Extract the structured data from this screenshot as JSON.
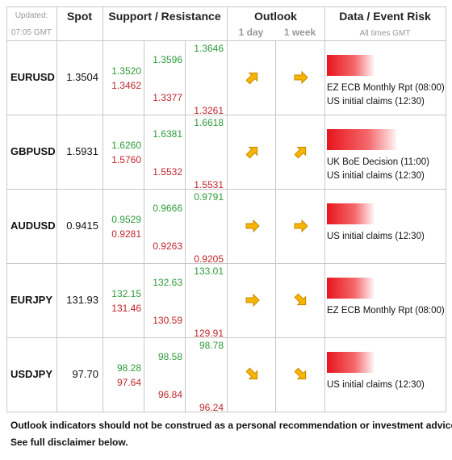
{
  "header": {
    "updated": "Updated:",
    "time": "07:05 GMT",
    "spot": "Spot",
    "support_resistance": "Support / Resistance",
    "outlook": "Outlook",
    "day": "1 day",
    "week": "1 week",
    "data_event": "Data / Event Risk",
    "times": "All times GMT"
  },
  "rows": [
    {
      "pair": "EURUSD",
      "spot": "1.3504",
      "levels": [
        {
          "resistance": "1.3520",
          "support": "1.3462"
        },
        {
          "resistance": "1.3596",
          "support": "1.3377"
        },
        {
          "resistance": "1.3646",
          "support": "1.3261"
        }
      ],
      "events": [
        "EZ ECB Monthly Rpt (08:00)",
        "US initial claims (12:30)"
      ]
    },
    {
      "pair": "GBPUSD",
      "spot": "1.5931",
      "levels": [
        {
          "resistance": "1.6260",
          "support": "1.5760"
        },
        {
          "resistance": "1.6381",
          "support": "1.5532"
        },
        {
          "resistance": "1.6618",
          "support": "1.5531"
        }
      ],
      "events": [
        "UK BoE Decision (11:00)",
        "US initial claims (12:30)"
      ]
    },
    {
      "pair": "AUDUSD",
      "spot": "0.9415",
      "levels": [
        {
          "resistance": "0.9529",
          "support": "0.9281"
        },
        {
          "resistance": "0.9666",
          "support": "0.9263"
        },
        {
          "resistance": "0.9791",
          "support": "0.9205"
        }
      ],
      "events": [
        "US initial claims (12:30)"
      ]
    },
    {
      "pair": "EURJPY",
      "spot": "131.93",
      "levels": [
        {
          "resistance": "132.15",
          "support": "131.46"
        },
        {
          "resistance": "132.63",
          "support": "130.59"
        },
        {
          "resistance": "133.01",
          "support": "129.91"
        }
      ],
      "events": [
        "EZ ECB Monthly Rpt (08:00)"
      ]
    },
    {
      "pair": "USDJPY",
      "spot": "97.70",
      "levels": [
        {
          "resistance": "98.28",
          "support": "97.64"
        },
        {
          "resistance": "98.58",
          "support": "96.84"
        },
        {
          "resistance": "98.78",
          "support": "96.24"
        }
      ],
      "events": [
        "US initial claims (12:30)"
      ]
    }
  ],
  "footer": [
    "Outlook indicators should not be construed as a personal recommendation or investment advice.",
    "See full disclaimer below."
  ]
}
